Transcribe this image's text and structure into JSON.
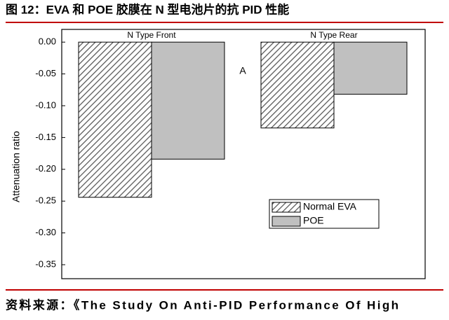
{
  "title": "图 12：EVA 和 POE 胶膜在 N 型电池片的抗 PID 性能",
  "source": "资料来源：《The Study On Anti-PID Performance Of High",
  "chart_data": {
    "type": "bar",
    "categories": [
      "N Type Front",
      "N Type Rear"
    ],
    "series": [
      {
        "name": "Normal EVA",
        "color": "#555555",
        "pattern": "hatch",
        "values": [
          -0.244,
          -0.135
        ]
      },
      {
        "name": "POE",
        "color": "#c0c0c0",
        "values": [
          -0.184,
          -0.082
        ]
      }
    ],
    "annotation": "A",
    "y_label": "Attenuation ratio",
    "ylim": [
      -0.372,
      0.02
    ],
    "yticks": [
      {
        "value": 0,
        "label": "0.00"
      },
      -0.05,
      {
        "value": -0.1,
        "label": "-0.10"
      },
      -0.15,
      {
        "value": -0.2,
        "label": "-0.20"
      },
      -0.25,
      {
        "value": -0.3,
        "label": "-0.30"
      },
      -0.35
    ]
  }
}
